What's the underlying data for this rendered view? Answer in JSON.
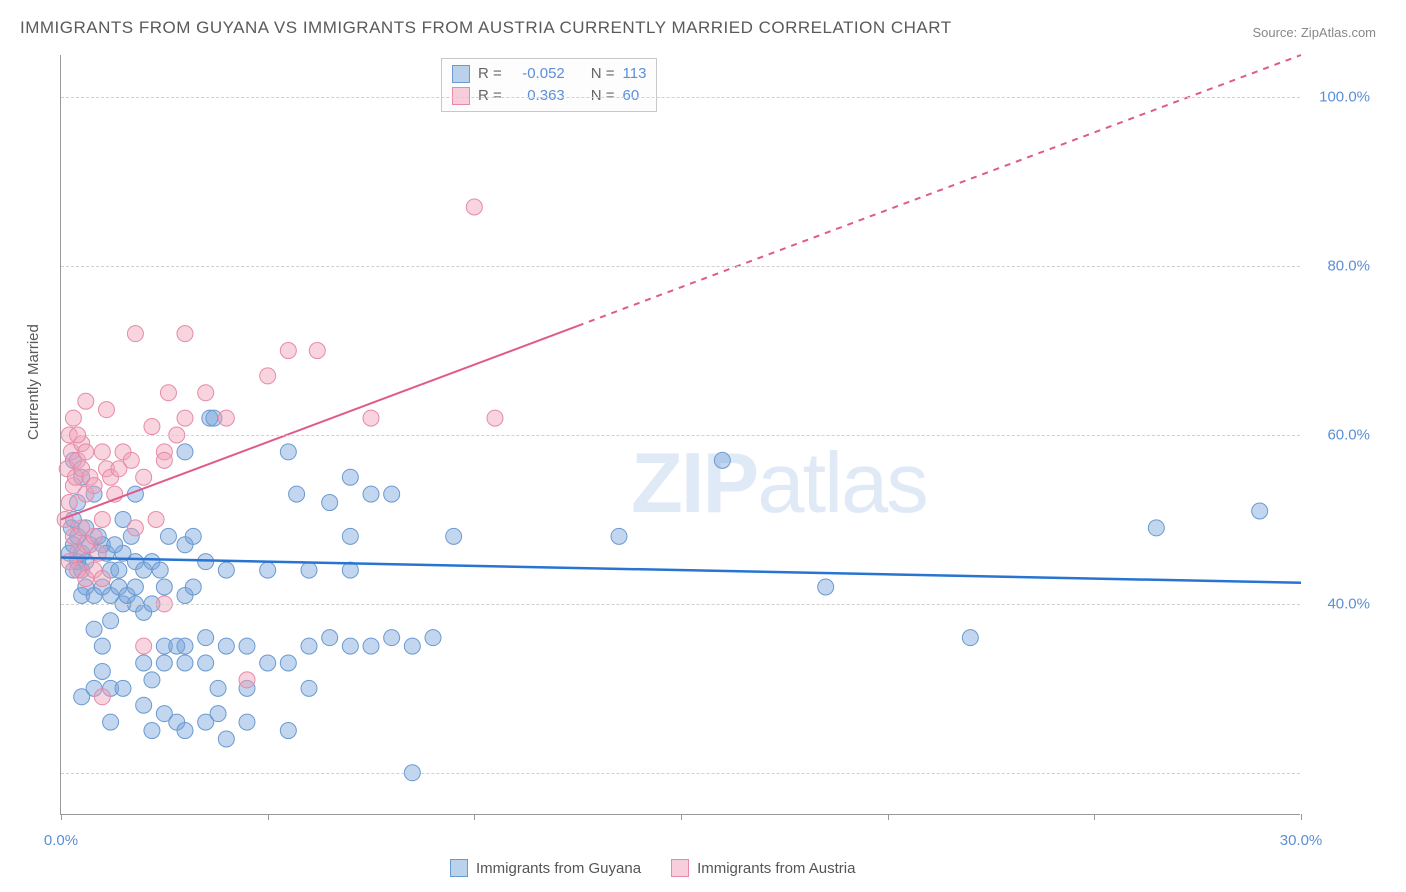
{
  "title": "IMMIGRANTS FROM GUYANA VS IMMIGRANTS FROM AUSTRIA CURRENTLY MARRIED CORRELATION CHART",
  "source": "Source: ZipAtlas.com",
  "watermark_zip": "ZIP",
  "watermark_atlas": "atlas",
  "y_axis_label": "Currently Married",
  "chart": {
    "type": "scatter",
    "xlim": [
      0,
      30
    ],
    "ylim": [
      15,
      105
    ],
    "x_ticks": [
      0,
      5,
      10,
      15,
      20,
      25,
      30
    ],
    "x_tick_labels": [
      "0.0%",
      "",
      "",
      "",
      "",
      "",
      "30.0%"
    ],
    "y_ticks": [
      20,
      40,
      60,
      80,
      100
    ],
    "y_tick_labels": [
      "",
      "40.0%",
      "60.0%",
      "80.0%",
      "100.0%"
    ],
    "grid_color": "#d0d0d0",
    "background_color": "#ffffff",
    "series": [
      {
        "name": "Immigrants from Guyana",
        "fill_color": "rgba(120,165,220,0.45)",
        "stroke_color": "#6a9ad0",
        "marker_radius": 8,
        "regression": {
          "x1": 0,
          "y1": 45.5,
          "x2": 30,
          "y2": 42.5,
          "color": "#2874d0",
          "width": 2.5,
          "dash_after_x": null
        },
        "points": [
          [
            0.2,
            46
          ],
          [
            0.3,
            47
          ],
          [
            0.25,
            49
          ],
          [
            0.4,
            45
          ],
          [
            0.3,
            44
          ],
          [
            0.5,
            46
          ],
          [
            0.4,
            48
          ],
          [
            0.6,
            45
          ],
          [
            0.5,
            44
          ],
          [
            0.7,
            47
          ],
          [
            0.3,
            50
          ],
          [
            0.4,
            52
          ],
          [
            0.6,
            49
          ],
          [
            0.8,
            53
          ],
          [
            0.5,
            55
          ],
          [
            0.3,
            57
          ],
          [
            0.9,
            48
          ],
          [
            1.0,
            47
          ],
          [
            1.2,
            44
          ],
          [
            1.1,
            46
          ],
          [
            1.5,
            46
          ],
          [
            1.3,
            47
          ],
          [
            1.4,
            44
          ],
          [
            1.8,
            45
          ],
          [
            2.0,
            44
          ],
          [
            1.7,
            48
          ],
          [
            2.2,
            45
          ],
          [
            2.4,
            44
          ],
          [
            2.6,
            48
          ],
          [
            3.0,
            47
          ],
          [
            3.2,
            48
          ],
          [
            3.5,
            45
          ],
          [
            3.0,
            58
          ],
          [
            3.6,
            62
          ],
          [
            3.7,
            62
          ],
          [
            5.5,
            58
          ],
          [
            5.7,
            53
          ],
          [
            6.5,
            52
          ],
          [
            7.0,
            55
          ],
          [
            7.5,
            53
          ],
          [
            7.0,
            48
          ],
          [
            8.0,
            53
          ],
          [
            8.5,
            35
          ],
          [
            9.0,
            36
          ],
          [
            9.5,
            48
          ],
          [
            4.5,
            35
          ],
          [
            5.0,
            33
          ],
          [
            5.5,
            33
          ],
          [
            6.0,
            35
          ],
          [
            6.5,
            36
          ],
          [
            7.0,
            35
          ],
          [
            7.5,
            35
          ],
          [
            8.0,
            36
          ],
          [
            8.5,
            20
          ],
          [
            0.8,
            37
          ],
          [
            1.0,
            35
          ],
          [
            1.2,
            38
          ],
          [
            1.5,
            40
          ],
          [
            1.8,
            40
          ],
          [
            2.0,
            39
          ],
          [
            2.2,
            40
          ],
          [
            2.5,
            35
          ],
          [
            2.8,
            35
          ],
          [
            3.0,
            35
          ],
          [
            3.5,
            36
          ],
          [
            4.0,
            35
          ],
          [
            2.0,
            28
          ],
          [
            2.2,
            25
          ],
          [
            2.5,
            27
          ],
          [
            2.8,
            26
          ],
          [
            3.0,
            25
          ],
          [
            3.5,
            26
          ],
          [
            4.0,
            24
          ],
          [
            3.8,
            27
          ],
          [
            4.5,
            26
          ],
          [
            5.5,
            25
          ],
          [
            2.0,
            33
          ],
          [
            2.2,
            31
          ],
          [
            2.5,
            33
          ],
          [
            3.0,
            33
          ],
          [
            3.5,
            33
          ],
          [
            3.8,
            30
          ],
          [
            4.5,
            30
          ],
          [
            6.0,
            30
          ],
          [
            0.5,
            41
          ],
          [
            0.6,
            42
          ],
          [
            0.8,
            41
          ],
          [
            1.0,
            42
          ],
          [
            1.2,
            41
          ],
          [
            1.4,
            42
          ],
          [
            1.6,
            41
          ],
          [
            1.8,
            42
          ],
          [
            2.5,
            42
          ],
          [
            3.0,
            41
          ],
          [
            3.2,
            42
          ],
          [
            1.5,
            50
          ],
          [
            1.8,
            53
          ],
          [
            13.5,
            48
          ],
          [
            16.0,
            57
          ],
          [
            18.5,
            42
          ],
          [
            22.0,
            36
          ],
          [
            26.5,
            49
          ],
          [
            29.0,
            51
          ],
          [
            7.0,
            44
          ],
          [
            6.0,
            44
          ],
          [
            5.0,
            44
          ],
          [
            4.0,
            44
          ],
          [
            0.5,
            29
          ],
          [
            0.8,
            30
          ],
          [
            1.0,
            32
          ],
          [
            1.2,
            30
          ],
          [
            1.5,
            30
          ],
          [
            1.2,
            26
          ]
        ]
      },
      {
        "name": "Immigrants from Austria",
        "fill_color": "rgba(240,160,185,0.45)",
        "stroke_color": "#e68aa8",
        "marker_radius": 8,
        "regression": {
          "x1": 0,
          "y1": 50,
          "x2": 30,
          "y2": 105,
          "color": "#e05a8a",
          "width": 2,
          "dash_after_x": 12.5
        },
        "points": [
          [
            0.1,
            50
          ],
          [
            0.2,
            52
          ],
          [
            0.3,
            54
          ],
          [
            0.15,
            56
          ],
          [
            0.25,
            58
          ],
          [
            0.35,
            55
          ],
          [
            0.4,
            57
          ],
          [
            0.2,
            60
          ],
          [
            0.3,
            62
          ],
          [
            0.5,
            59
          ],
          [
            0.4,
            60
          ],
          [
            0.6,
            58
          ],
          [
            0.5,
            56
          ],
          [
            0.7,
            55
          ],
          [
            0.6,
            53
          ],
          [
            0.8,
            54
          ],
          [
            0.3,
            48
          ],
          [
            0.4,
            46
          ],
          [
            0.5,
            49
          ],
          [
            0.6,
            47
          ],
          [
            0.8,
            48
          ],
          [
            0.9,
            46
          ],
          [
            1.0,
            58
          ],
          [
            1.1,
            56
          ],
          [
            1.2,
            55
          ],
          [
            1.0,
            50
          ],
          [
            1.3,
            53
          ],
          [
            1.4,
            56
          ],
          [
            1.5,
            58
          ],
          [
            1.7,
            57
          ],
          [
            1.8,
            49
          ],
          [
            2.0,
            55
          ],
          [
            2.2,
            61
          ],
          [
            2.3,
            50
          ],
          [
            2.5,
            58
          ],
          [
            2.5,
            57
          ],
          [
            2.8,
            60
          ],
          [
            3.0,
            72
          ],
          [
            3.0,
            62
          ],
          [
            1.8,
            72
          ],
          [
            0.6,
            64
          ],
          [
            1.1,
            63
          ],
          [
            2.6,
            65
          ],
          [
            3.5,
            65
          ],
          [
            4.0,
            62
          ],
          [
            5.0,
            67
          ],
          [
            5.5,
            70
          ],
          [
            6.2,
            70
          ],
          [
            7.5,
            62
          ],
          [
            10.5,
            62
          ],
          [
            10.0,
            87
          ],
          [
            0.2,
            45
          ],
          [
            0.4,
            44
          ],
          [
            0.6,
            43
          ],
          [
            0.8,
            44
          ],
          [
            1.0,
            43
          ],
          [
            1.0,
            29
          ],
          [
            2.0,
            35
          ],
          [
            2.5,
            40
          ],
          [
            4.5,
            31
          ]
        ]
      }
    ],
    "correlation_box": {
      "rows": [
        {
          "swatch_fill": "rgba(120,165,220,0.5)",
          "swatch_stroke": "#6a9ad0",
          "r_label": "R =",
          "r": "-0.052",
          "n_label": "N =",
          "n": "113"
        },
        {
          "swatch_fill": "rgba(240,160,185,0.5)",
          "swatch_stroke": "#e68aa8",
          "r_label": "R =",
          "r": "0.363",
          "n_label": "N =",
          "n": "60"
        }
      ]
    },
    "bottom_legend": [
      {
        "label": "Immigrants from Guyana",
        "swatch_fill": "rgba(120,165,220,0.5)",
        "swatch_stroke": "#6a9ad0"
      },
      {
        "label": "Immigrants from Austria",
        "swatch_fill": "rgba(240,160,185,0.5)",
        "swatch_stroke": "#e68aa8"
      }
    ]
  }
}
